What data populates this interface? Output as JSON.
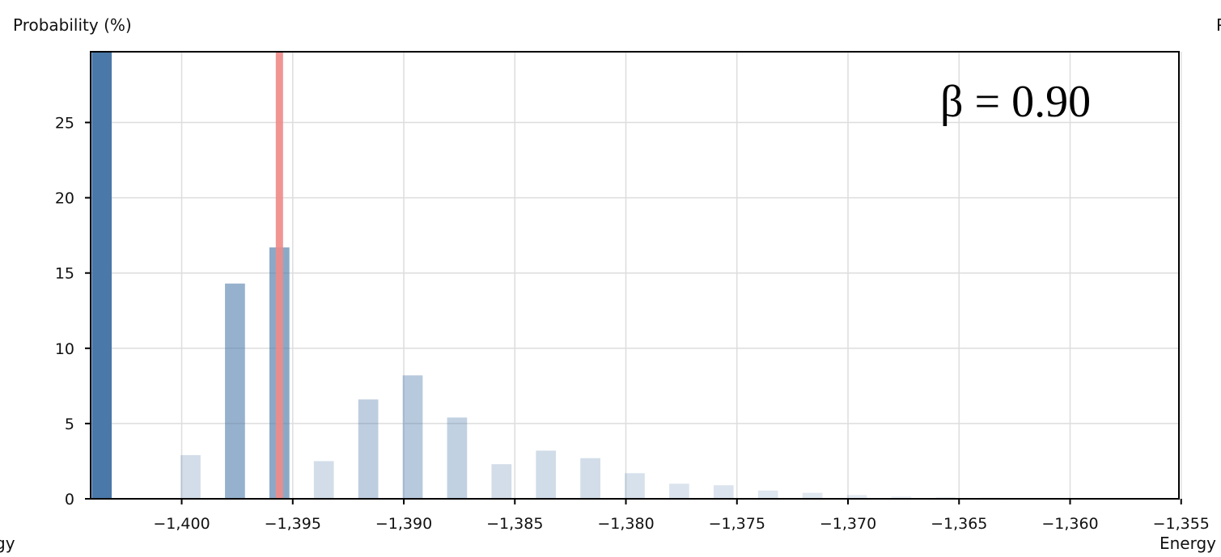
{
  "chart_data": {
    "type": "bar",
    "ylabel": "Probability (%)",
    "xlabel": "Energy",
    "left_edge_label": "gy",
    "right_edge_label": "P",
    "annotation": "β = 0.90",
    "xlim": [
      -1404.1,
      -1355.1
    ],
    "ylim": [
      0,
      29.7
    ],
    "x_ticks": [
      -1400,
      -1395,
      -1390,
      -1385,
      -1380,
      -1375,
      -1370,
      -1365,
      -1360,
      -1355
    ],
    "x_tick_labels": [
      "−1,400",
      "−1,395",
      "−1,390",
      "−1,385",
      "−1,380",
      "−1,375",
      "−1,370",
      "−1,365",
      "−1,360",
      "−1,355"
    ],
    "y_ticks": [
      0,
      5,
      10,
      15,
      20,
      25
    ],
    "y_tick_labels": [
      "0",
      "5",
      "10",
      "15",
      "20",
      "25"
    ],
    "grid": true,
    "bar_width": 0.9,
    "bars": [
      {
        "x": -1403.6,
        "value": 29.7,
        "opacity": 1.0
      },
      {
        "x": -1399.6,
        "value": 2.9,
        "opacity": 0.25
      },
      {
        "x": -1397.6,
        "value": 14.3,
        "opacity": 0.58
      },
      {
        "x": -1395.6,
        "value": 16.7,
        "opacity": 0.64
      },
      {
        "x": -1393.6,
        "value": 2.5,
        "opacity": 0.25
      },
      {
        "x": -1391.6,
        "value": 6.6,
        "opacity": 0.36
      },
      {
        "x": -1389.6,
        "value": 8.2,
        "opacity": 0.4
      },
      {
        "x": -1387.6,
        "value": 5.4,
        "opacity": 0.34
      },
      {
        "x": -1385.6,
        "value": 2.3,
        "opacity": 0.25
      },
      {
        "x": -1383.6,
        "value": 3.2,
        "opacity": 0.26
      },
      {
        "x": -1381.6,
        "value": 2.7,
        "opacity": 0.25
      },
      {
        "x": -1379.6,
        "value": 1.7,
        "opacity": 0.22
      },
      {
        "x": -1377.6,
        "value": 1.0,
        "opacity": 0.2
      },
      {
        "x": -1375.6,
        "value": 0.9,
        "opacity": 0.2
      },
      {
        "x": -1373.6,
        "value": 0.55,
        "opacity": 0.18
      },
      {
        "x": -1371.6,
        "value": 0.4,
        "opacity": 0.17
      },
      {
        "x": -1369.6,
        "value": 0.25,
        "opacity": 0.15
      },
      {
        "x": -1367.6,
        "value": 0.15,
        "opacity": 0.13
      },
      {
        "x": -1365.6,
        "value": 0.12,
        "opacity": 0.12
      },
      {
        "x": -1363.6,
        "value": 0.08,
        "opacity": 0.1
      },
      {
        "x": -1361.6,
        "value": 0.05,
        "opacity": 0.1
      },
      {
        "x": -1359.6,
        "value": 0.03,
        "opacity": 0.1
      },
      {
        "x": -1357.6,
        "value": 0.02,
        "opacity": 0.1
      }
    ],
    "reference_line": {
      "x": -1395.6
    },
    "colors": {
      "bar": "#4a78a8",
      "reference_line": "#ef8a87",
      "grid": "#dddddd",
      "axis": "#000000"
    }
  }
}
